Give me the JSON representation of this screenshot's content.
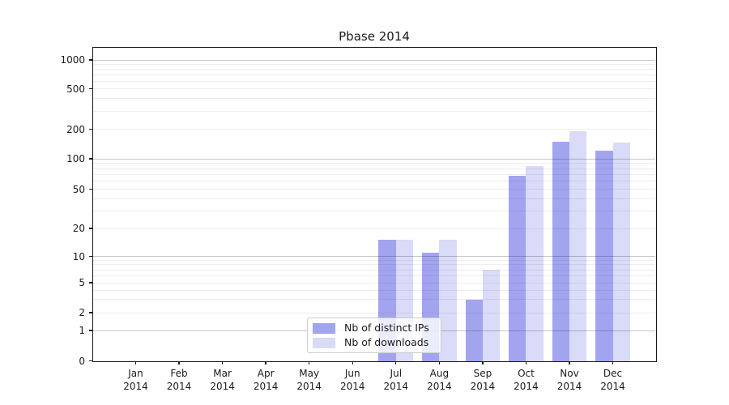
{
  "chart_data": {
    "type": "bar",
    "title": "Pbase 2014",
    "categories": [
      "Jan",
      "Feb",
      "Mar",
      "Apr",
      "May",
      "Jun",
      "Jul",
      "Aug",
      "Sep",
      "Oct",
      "Nov",
      "Dec"
    ],
    "year_label": "2014",
    "series": [
      {
        "name": "Nb of distinct IPs",
        "color": "#a2a4f0",
        "values": [
          0,
          0,
          0,
          0,
          0,
          0,
          15,
          11,
          3,
          68,
          148,
          121
        ]
      },
      {
        "name": "Nb of downloads",
        "color": "#d9dbf8",
        "values": [
          0,
          0,
          0,
          0,
          0,
          0,
          15,
          15,
          7,
          84,
          192,
          145
        ]
      }
    ],
    "xlabel": "",
    "ylabel": "",
    "yscale": "asinh-log",
    "yticks": [
      0,
      1,
      2,
      5,
      10,
      20,
      50,
      100,
      200,
      500,
      1000
    ],
    "ylim": [
      0,
      1300
    ],
    "grid": "horizontal major (decades, darker) + minor (light)",
    "legend_position": "inside bottom-center",
    "legend_entries": [
      "Nb of distinct IPs",
      "Nb of downloads"
    ]
  }
}
